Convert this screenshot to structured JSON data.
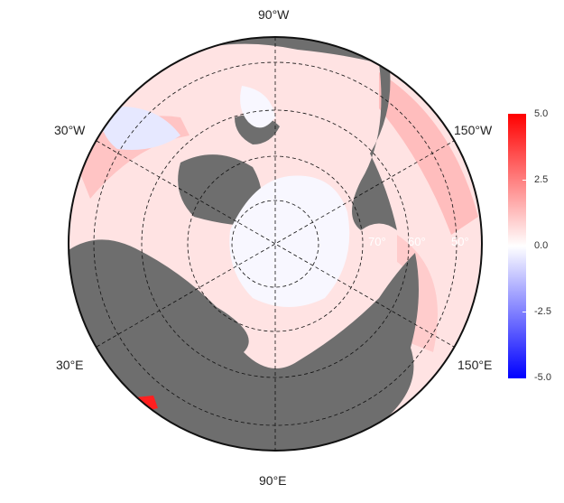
{
  "map": {
    "projection": "north polar stereographic",
    "longitude_labels": {
      "top": "90°W",
      "bottom": "90°E",
      "upper_left": "30°W",
      "upper_right": "150°W",
      "lower_left": "30°E",
      "lower_right": "150°E"
    },
    "latitude_labels": [
      "50°",
      "60°",
      "70°"
    ],
    "land_color": "#6e6e6e",
    "background_color": "#ffffff"
  },
  "colorbar": {
    "ticks": [
      "5.0",
      "2.5",
      "0.0",
      "-2.5",
      "-5.0"
    ],
    "max_color": "#ff0000",
    "mid_color": "#ffffff",
    "min_color": "#0000ff"
  }
}
